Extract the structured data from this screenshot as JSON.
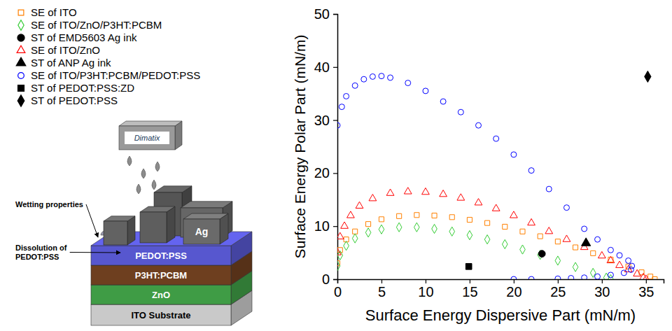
{
  "diagram": {
    "printer": "Dimatix",
    "layers": [
      "ITO Substrate",
      "ZnO",
      "P3HT:PCBM",
      "PEDOT:PSS"
    ],
    "electrode": "Ag",
    "annotations": [
      "Wetting properties",
      "Dissolution of PEDOT:PSS"
    ]
  },
  "chart_data": {
    "type": "scatter",
    "x_label": "Surface Energy Dispersive Part (mN/m)",
    "y_label": "Surface Energy Polar Part (mN/m)",
    "xlim": [
      0,
      37
    ],
    "xticks": [
      0,
      5,
      10,
      15,
      20,
      25,
      30,
      35
    ],
    "ylim": [
      0,
      50
    ],
    "yticks": [
      0,
      10,
      20,
      30,
      40,
      50
    ],
    "grid": false,
    "legend": "left",
    "series": [
      {
        "name": "SE of ITO",
        "color": "#ff8000",
        "marker": "square-open",
        "x": [
          0,
          0.3,
          1,
          2,
          3.5,
          5,
          7,
          9,
          11,
          13,
          15,
          17,
          19,
          21,
          23,
          25,
          27,
          29,
          31,
          33,
          34.5,
          35.5,
          36
        ],
        "values": [
          3,
          5.5,
          7.5,
          9,
          10.4,
          11.3,
          11.9,
          12.1,
          12,
          11.7,
          11.2,
          10.6,
          9.9,
          9,
          8.1,
          7.1,
          6,
          4.9,
          3.7,
          2.4,
          1.3,
          0.5,
          0
        ]
      },
      {
        "name": "SE of ITO/ZnO/P3HT:PCBM",
        "color": "#33cc33",
        "marker": "diamond-open",
        "x": [
          0,
          0.3,
          1,
          2,
          3.5,
          5,
          7,
          9,
          11,
          13,
          15,
          17,
          19,
          21,
          23,
          25,
          27,
          29,
          30.5,
          31
        ],
        "values": [
          2.5,
          4.5,
          6.3,
          7.7,
          8.8,
          9.4,
          9.8,
          9.8,
          9.5,
          9,
          8.3,
          7.5,
          6.6,
          5.6,
          4.6,
          3.5,
          2.3,
          1.2,
          0.3,
          0
        ]
      },
      {
        "name": "ST of EMD5603 Ag ink",
        "color": "#000000",
        "marker": "circle",
        "x": [
          23.2
        ],
        "values": [
          4.8
        ]
      },
      {
        "name": "SE of ITO/ZnO",
        "color": "#ff0000",
        "marker": "triangle-open",
        "x": [
          0,
          0.3,
          0.8,
          1.5,
          2.5,
          4,
          6,
          8,
          10,
          12,
          14,
          16,
          18,
          20,
          22,
          24,
          26,
          28,
          30,
          31,
          32,
          33,
          34,
          34.7,
          35
        ],
        "values": [
          5,
          8,
          10,
          12,
          13.8,
          15.2,
          16.2,
          16.5,
          16.4,
          16,
          15.3,
          14.4,
          13.3,
          12,
          10.6,
          9,
          7.5,
          6,
          4.4,
          3.5,
          2.6,
          1.8,
          1,
          0.3,
          0
        ]
      },
      {
        "name": "ST of ANP Ag ink",
        "color": "#000000",
        "marker": "triangle",
        "x": [
          28.2
        ],
        "values": [
          6.8
        ]
      },
      {
        "name": "SE of ITO/P3HT:PCBM/PEDOT:PSS",
        "color": "#0000ff",
        "marker": "circle-open",
        "x": [
          0,
          0.5,
          1,
          2,
          3,
          4,
          5,
          6,
          8,
          10,
          12,
          14,
          16,
          18,
          20,
          22,
          24,
          26,
          28,
          29.5,
          31,
          32,
          33,
          33.4,
          33.3,
          32.5,
          31,
          29.5,
          28,
          26.5,
          25,
          22,
          20
        ],
        "values": [
          29,
          32.5,
          34.5,
          36.5,
          37.7,
          38.2,
          38.3,
          38,
          37,
          35.5,
          33.5,
          31.5,
          29,
          26.5,
          23.5,
          20.5,
          17,
          13.5,
          9.5,
          7.5,
          5.5,
          4.5,
          3.5,
          2.5,
          1.8,
          1.2,
          0.8,
          0.5,
          0.3,
          0.2,
          0.1,
          0,
          0
        ]
      },
      {
        "name": "ST of PEDOT:PSS:ZD",
        "color": "#000000",
        "marker": "square",
        "x": [
          14.9
        ],
        "values": [
          2.4
        ]
      },
      {
        "name": "ST of PEDOT:PSS",
        "color": "#000000",
        "marker": "diamond",
        "x": [
          35.2
        ],
        "values": [
          38.2
        ]
      }
    ]
  }
}
